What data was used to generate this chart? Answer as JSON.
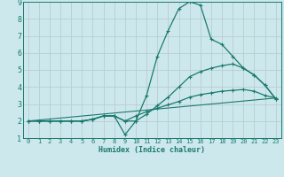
{
  "xlabel": "Humidex (Indice chaleur)",
  "background_color": "#cde8ec",
  "grid_color": "#b8cdd0",
  "line_color": "#1a7a6e",
  "xlim": [
    -0.5,
    23.5
  ],
  "ylim": [
    1,
    9
  ],
  "xticks": [
    0,
    1,
    2,
    3,
    4,
    5,
    6,
    7,
    8,
    9,
    10,
    11,
    12,
    13,
    14,
    15,
    16,
    17,
    18,
    19,
    20,
    21,
    22,
    23
  ],
  "yticks": [
    1,
    2,
    3,
    4,
    5,
    6,
    7,
    8,
    9
  ],
  "line1_x": [
    0,
    1,
    2,
    3,
    4,
    5,
    6,
    7,
    8,
    9,
    10,
    11,
    12,
    13,
    14,
    15,
    16,
    17,
    18,
    19,
    20,
    21,
    22,
    23
  ],
  "line1_y": [
    2.0,
    2.0,
    2.0,
    2.0,
    2.0,
    2.0,
    2.1,
    2.3,
    2.3,
    2.0,
    2.0,
    3.5,
    5.8,
    7.3,
    8.6,
    9.0,
    8.8,
    6.8,
    6.5,
    5.8,
    5.1,
    4.7,
    4.1,
    3.3
  ],
  "line2_x": [
    0,
    1,
    2,
    3,
    4,
    5,
    6,
    7,
    8,
    9,
    10,
    11,
    12,
    13,
    14,
    15,
    16,
    17,
    18,
    19,
    20,
    21,
    22,
    23
  ],
  "line2_y": [
    2.0,
    2.0,
    2.0,
    2.0,
    2.0,
    2.0,
    2.1,
    2.3,
    2.3,
    1.2,
    2.0,
    2.4,
    2.9,
    3.4,
    4.0,
    4.6,
    4.9,
    5.1,
    5.25,
    5.35,
    5.1,
    4.7,
    4.1,
    3.3
  ],
  "line3_x": [
    0,
    1,
    2,
    3,
    4,
    5,
    6,
    7,
    8,
    9,
    10,
    11,
    12,
    13,
    14,
    15,
    16,
    17,
    18,
    19,
    20,
    21,
    22,
    23
  ],
  "line3_y": [
    2.0,
    2.0,
    2.0,
    2.0,
    2.0,
    2.0,
    2.1,
    2.3,
    2.3,
    2.0,
    2.3,
    2.55,
    2.75,
    2.95,
    3.15,
    3.4,
    3.55,
    3.65,
    3.75,
    3.8,
    3.85,
    3.75,
    3.5,
    3.35
  ],
  "line4_x": [
    0,
    23
  ],
  "line4_y": [
    2.0,
    3.35
  ]
}
